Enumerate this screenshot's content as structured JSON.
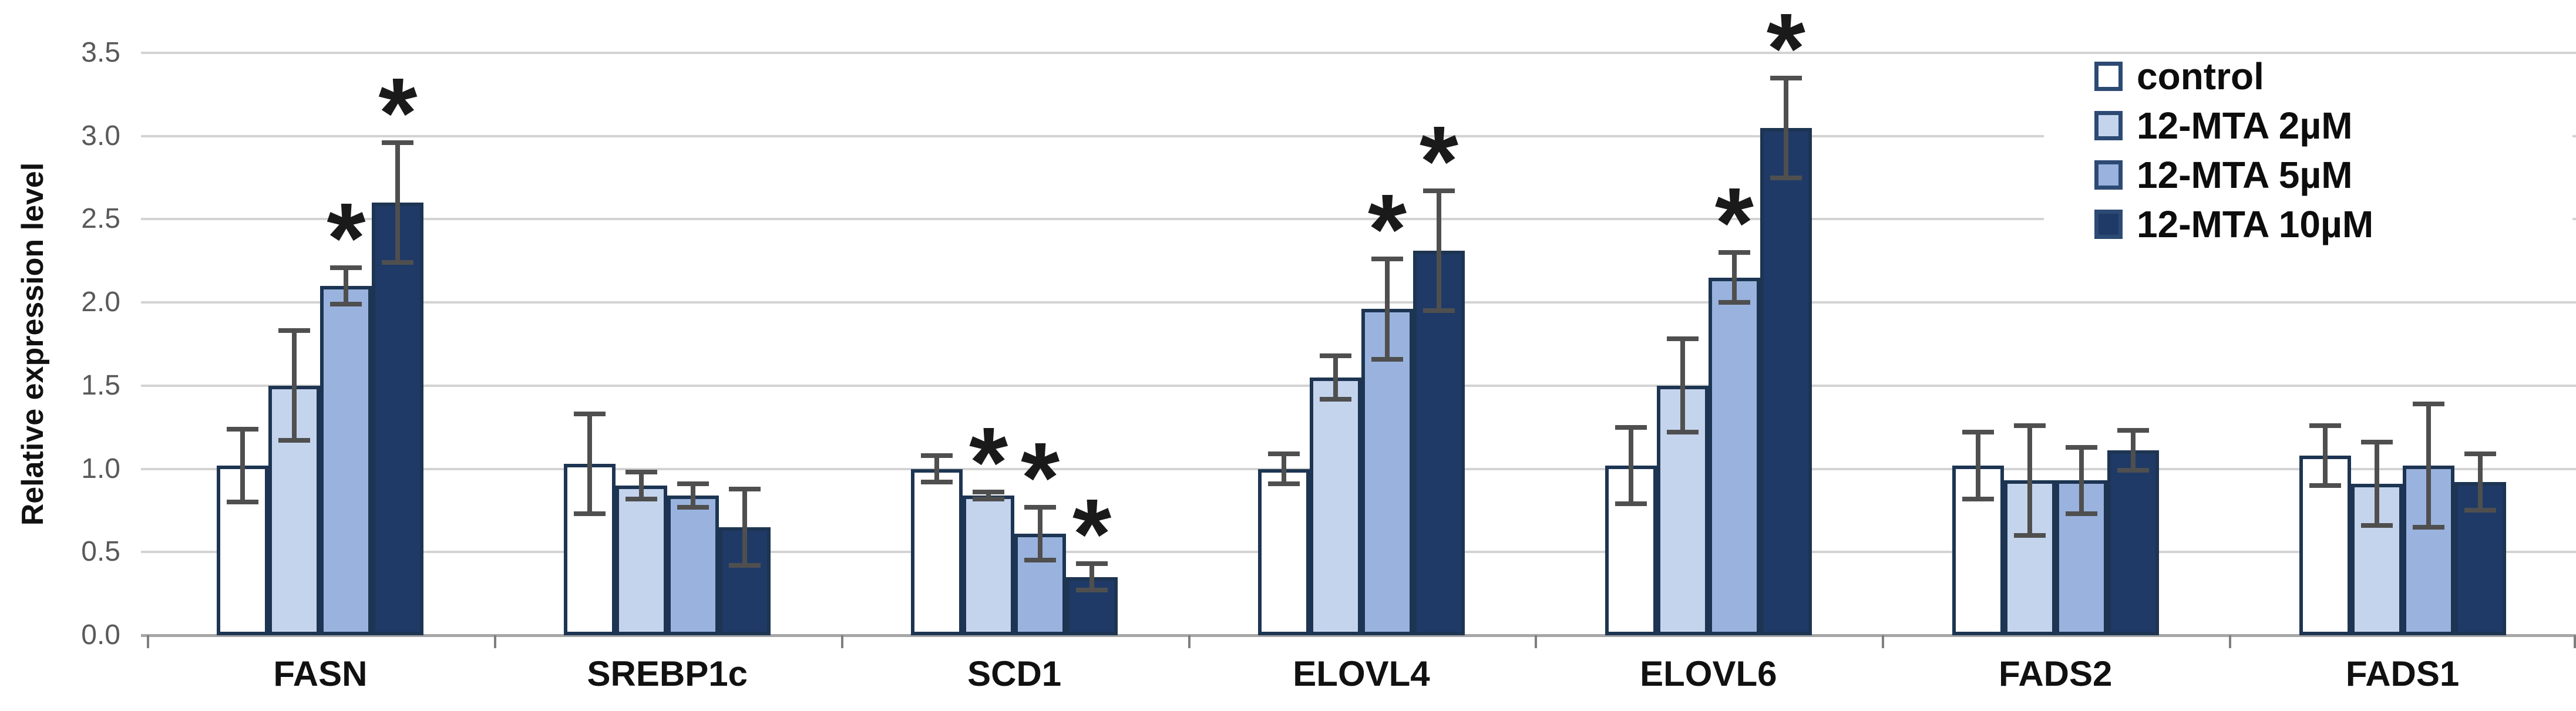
{
  "y_axis": {
    "title": "Relative expression level"
  },
  "chart_data": {
    "type": "bar",
    "title": "",
    "xlabel": "",
    "ylabel": "Relative expression level",
    "ylim": [
      0,
      3.5
    ],
    "ytick_step": 0.5,
    "yticks": [
      "0.0",
      "0.5",
      "1.0",
      "1.5",
      "2.0",
      "2.5",
      "3.0",
      "3.5"
    ],
    "grid": true,
    "legend_position": "top-right",
    "error_bars": true,
    "significance_marker": "*",
    "categories": [
      "FASN",
      "SREBP1c",
      "SCD1",
      "ELOVL4",
      "ELOVL6",
      "FADS2",
      "FADS1"
    ],
    "series": [
      {
        "name": "control",
        "color": "#ffffff",
        "values": [
          1.02,
          1.03,
          1.0,
          1.0,
          1.02,
          1.02,
          1.08
        ],
        "errors": [
          0.22,
          0.3,
          0.08,
          0.09,
          0.23,
          0.2,
          0.18
        ],
        "significant": [
          false,
          false,
          false,
          false,
          false,
          false,
          false
        ]
      },
      {
        "name": "12-MTA 2µM",
        "color": "#c5d4ed",
        "values": [
          1.5,
          0.9,
          0.84,
          1.55,
          1.5,
          0.93,
          0.91
        ],
        "errors": [
          0.33,
          0.08,
          0.02,
          0.13,
          0.28,
          0.33,
          0.25
        ],
        "significant": [
          false,
          false,
          true,
          false,
          false,
          false,
          false
        ]
      },
      {
        "name": "12-MTA 5µM",
        "color": "#9ab3de",
        "values": [
          2.1,
          0.84,
          0.61,
          1.96,
          2.15,
          0.93,
          1.02
        ],
        "errors": [
          0.11,
          0.07,
          0.16,
          0.3,
          0.15,
          0.2,
          0.37
        ],
        "significant": [
          true,
          false,
          true,
          true,
          true,
          false,
          false
        ]
      },
      {
        "name": "12-MTA 10µM",
        "color": "#1f3a66",
        "values": [
          2.6,
          0.65,
          0.35,
          2.31,
          3.05,
          1.11,
          0.92
        ],
        "errors": [
          0.36,
          0.23,
          0.08,
          0.36,
          0.3,
          0.12,
          0.17
        ],
        "significant": [
          true,
          false,
          true,
          true,
          true,
          false,
          false
        ]
      }
    ]
  },
  "colors": {
    "bar_border": "#1d3552",
    "error_bar": "#4f4f4f",
    "gridline": "#d3d3d3",
    "axis_line": "#a6a6a6",
    "tick_label": "#595959",
    "category_label": "#111111",
    "legend_text": "#0d0d0d",
    "asterisk": "#1a1a1a"
  }
}
